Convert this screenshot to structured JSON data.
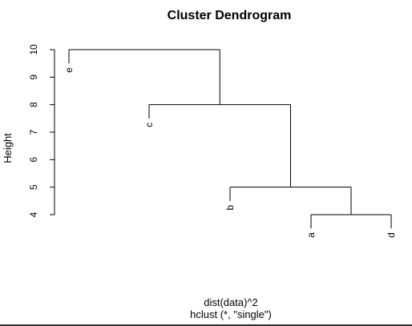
{
  "chart_data": {
    "type": "dendrogram",
    "title": "Cluster Dendrogram",
    "xlabel": "dist(data)^2",
    "sub": "hclust (*, \"single\")",
    "ylabel": "Height",
    "yticks": [
      4,
      5,
      6,
      7,
      8,
      9,
      10
    ],
    "ylim": [
      4,
      10
    ],
    "leaves": [
      "e",
      "c",
      "b",
      "a",
      "d"
    ],
    "merges": [
      {
        "left": "a",
        "right": "d",
        "height": 4
      },
      {
        "left": "b",
        "right": "a+d",
        "height": 5
      },
      {
        "left": "c",
        "right": "b+a+d",
        "height": 8
      },
      {
        "left": "e",
        "right": "c+b+a+d",
        "height": 10
      }
    ]
  }
}
